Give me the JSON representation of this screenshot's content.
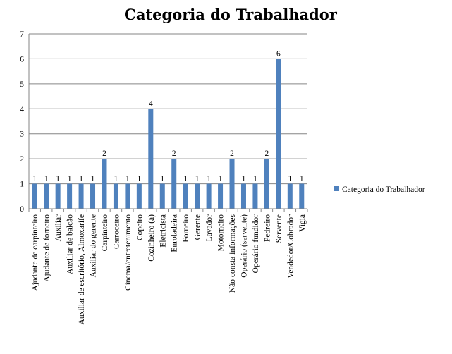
{
  "chart_data": {
    "type": "bar",
    "title": "Categoria do Trabalhador",
    "xlabel": "",
    "ylabel": "",
    "ylim": [
      0,
      7
    ],
    "yticks": [
      0,
      1,
      2,
      3,
      4,
      5,
      6,
      7
    ],
    "grid": true,
    "legend_position": "right",
    "bar_color": "#4f81bd",
    "categories": [
      "Ajudante de carpinteiro",
      "Ajudante de forneiro",
      "Auxiliar",
      "Auxiliar de balcão",
      "Auxiliar de escritório, Almoxarife",
      "Auxiliar do gerente",
      "Carpinteiro",
      "Carroceiro",
      "Cinema/entretenimento",
      "Copeiro",
      "Cozinheiro (a)",
      "Eletricista",
      "Enroladeira",
      "Forneiro",
      "Gerente",
      "Lavador",
      "Motorneiro",
      "Não consta informações",
      "Operário (servente)",
      "Operário fundidor",
      "Pedreiro",
      "Servente",
      "Vendedor/Cobrador",
      "Vigia"
    ],
    "series": [
      {
        "name": "Categoria do Trabalhador",
        "values": [
          1,
          1,
          1,
          1,
          1,
          1,
          2,
          1,
          1,
          1,
          4,
          1,
          2,
          1,
          1,
          1,
          1,
          2,
          1,
          1,
          2,
          6,
          1,
          1
        ]
      }
    ]
  }
}
